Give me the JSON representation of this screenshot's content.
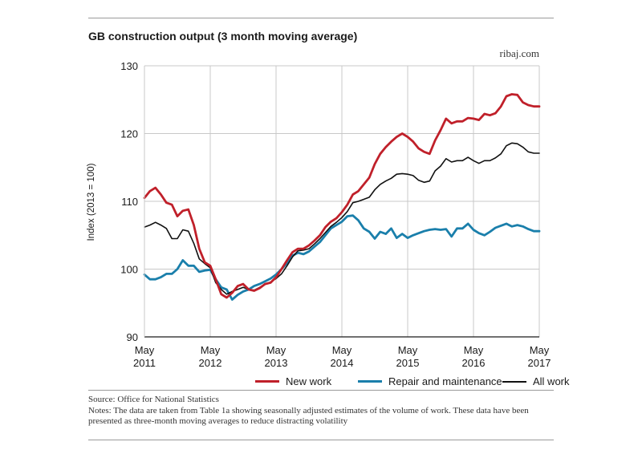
{
  "header": {
    "title": "GB construction output (3 month moving average)",
    "brand": "ribaj.com"
  },
  "footer": {
    "source": "Source: Office for National Statistics",
    "notes": "Notes: The data are taken from Table 1a showing seasonally adjusted estimates of the volume of work. These data have been presented as three-month moving averages to reduce distracting volatility"
  },
  "chart_data": {
    "type": "line",
    "title": "GB construction output (3 month moving average)",
    "ylabel": "Index (2013 = 100)",
    "xlabel": "",
    "ylim": [
      90,
      130
    ],
    "yticks": [
      90,
      100,
      110,
      120,
      130
    ],
    "xlim": [
      "2011-05",
      "2017-05"
    ],
    "xticks": [
      {
        "month": "2011-05",
        "line1": "May",
        "line2": "2011"
      },
      {
        "month": "2012-05",
        "line1": "May",
        "line2": "2012"
      },
      {
        "month": "2013-05",
        "line1": "May",
        "line2": "2013"
      },
      {
        "month": "2014-05",
        "line1": "May",
        "line2": "2014"
      },
      {
        "month": "2015-05",
        "line1": "May",
        "line2": "2015"
      },
      {
        "month": "2016-05",
        "line1": "May",
        "line2": "2016"
      },
      {
        "month": "2017-05",
        "line1": "May",
        "line2": "2017"
      }
    ],
    "grid": "vertical",
    "legend_position": "bottom",
    "x": [
      "2011-05",
      "2011-06",
      "2011-07",
      "2011-08",
      "2011-09",
      "2011-10",
      "2011-11",
      "2011-12",
      "2012-01",
      "2012-02",
      "2012-03",
      "2012-04",
      "2012-05",
      "2012-06",
      "2012-07",
      "2012-08",
      "2012-09",
      "2012-10",
      "2012-11",
      "2012-12",
      "2013-01",
      "2013-02",
      "2013-03",
      "2013-04",
      "2013-05",
      "2013-06",
      "2013-07",
      "2013-08",
      "2013-09",
      "2013-10",
      "2013-11",
      "2013-12",
      "2014-01",
      "2014-02",
      "2014-03",
      "2014-04",
      "2014-05",
      "2014-06",
      "2014-07",
      "2014-08",
      "2014-09",
      "2014-10",
      "2014-11",
      "2014-12",
      "2015-01",
      "2015-02",
      "2015-03",
      "2015-04",
      "2015-05",
      "2015-06",
      "2015-07",
      "2015-08",
      "2015-09",
      "2015-10",
      "2015-11",
      "2015-12",
      "2016-01",
      "2016-02",
      "2016-03",
      "2016-04",
      "2016-05",
      "2016-06",
      "2016-07",
      "2016-08",
      "2016-09",
      "2016-10",
      "2016-11",
      "2016-12",
      "2017-01",
      "2017-02",
      "2017-03",
      "2017-04",
      "2017-05"
    ],
    "series": [
      {
        "name": "New work",
        "color": "#c0202a",
        "values": [
          110.5,
          111.5,
          112.0,
          111.0,
          109.8,
          109.5,
          107.8,
          108.6,
          108.8,
          106.5,
          103.0,
          101.0,
          100.5,
          98.5,
          96.3,
          95.8,
          96.5,
          97.5,
          97.8,
          97.0,
          96.8,
          97.2,
          97.8,
          98.0,
          98.8,
          100.0,
          101.3,
          102.5,
          103.0,
          103.0,
          103.5,
          104.2,
          105.0,
          106.2,
          107.0,
          107.5,
          108.4,
          109.5,
          111.0,
          111.5,
          112.5,
          113.5,
          115.5,
          117.0,
          118.0,
          118.8,
          119.5,
          120.0,
          119.5,
          118.8,
          117.8,
          117.3,
          117.0,
          119.0,
          120.5,
          122.2,
          121.5,
          121.8,
          121.8,
          122.3,
          122.2,
          122.0,
          122.9,
          122.7,
          123.0,
          124.0,
          125.5,
          125.8,
          125.7,
          124.6,
          124.2,
          124.0,
          124.0
        ]
      },
      {
        "name": "Repair and maintenance",
        "color": "#1a7fab",
        "values": [
          99.2,
          98.5,
          98.5,
          98.8,
          99.3,
          99.3,
          100.0,
          101.3,
          100.5,
          100.5,
          99.6,
          99.8,
          99.9,
          98.5,
          97.3,
          97.0,
          95.5,
          96.2,
          96.7,
          97.0,
          97.5,
          97.8,
          98.2,
          98.6,
          99.2,
          100.0,
          100.9,
          102.0,
          102.4,
          102.2,
          102.6,
          103.3,
          104.0,
          105.0,
          106.0,
          106.5,
          107.0,
          107.8,
          107.9,
          107.2,
          106.0,
          105.5,
          104.5,
          105.5,
          105.2,
          106.0,
          104.6,
          105.2,
          104.6,
          105.0,
          105.3,
          105.6,
          105.8,
          105.9,
          105.8,
          105.9,
          104.8,
          106.0,
          106.0,
          106.7,
          105.8,
          105.3,
          105.0,
          105.5,
          106.1,
          106.4,
          106.7,
          106.3,
          106.5,
          106.3,
          105.9,
          105.6,
          105.6
        ]
      },
      {
        "name": "All work",
        "color": "#111111",
        "values": [
          106.2,
          106.5,
          106.9,
          106.5,
          106.0,
          104.5,
          104.5,
          105.8,
          105.6,
          103.8,
          101.5,
          100.8,
          100.2,
          98.0,
          97.0,
          96.3,
          96.7,
          97.0,
          97.3,
          97.0,
          96.9,
          97.3,
          97.8,
          98.1,
          98.6,
          99.3,
          100.5,
          101.8,
          102.7,
          102.8,
          103.0,
          103.7,
          104.5,
          105.4,
          106.3,
          106.9,
          107.6,
          108.5,
          109.8,
          110.0,
          110.3,
          110.6,
          111.7,
          112.5,
          113.0,
          113.4,
          114.0,
          114.1,
          114.0,
          113.8,
          113.1,
          112.8,
          113.0,
          114.5,
          115.2,
          116.3,
          115.8,
          116.0,
          116.0,
          116.5,
          116.0,
          115.6,
          116.0,
          116.0,
          116.4,
          117.0,
          118.2,
          118.6,
          118.5,
          118.0,
          117.3,
          117.1,
          117.1
        ]
      }
    ]
  }
}
